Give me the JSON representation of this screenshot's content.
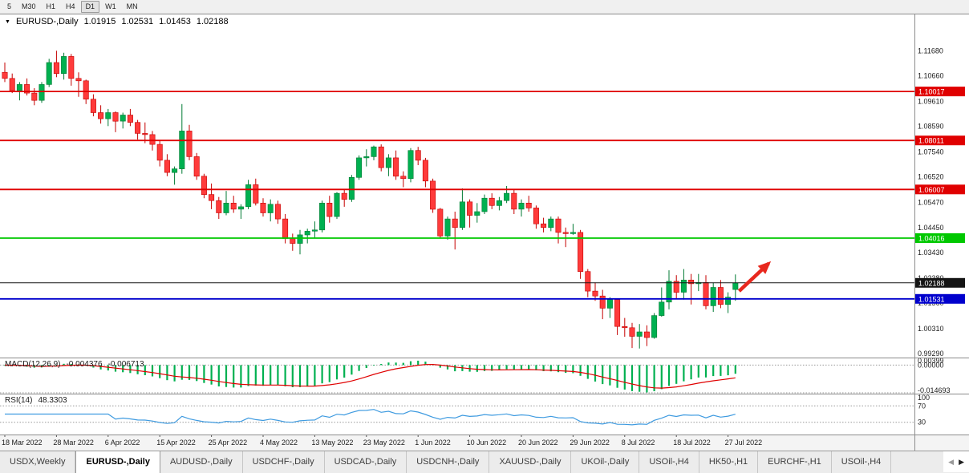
{
  "toolbar": {
    "timeframes": [
      "5",
      "M30",
      "H1",
      "H4",
      "D1",
      "W1",
      "MN"
    ],
    "active": "D1"
  },
  "icons": {
    "dropdown": "▼",
    "scroll_left": "◀",
    "scroll_right": "▶"
  },
  "header": {
    "symbol": "EURUSD-,Daily",
    "open": "1.01915",
    "high": "1.02531",
    "low": "1.01453",
    "close": "1.02188"
  },
  "chart_data": {
    "type": "candlestick",
    "title": "EURUSD-,Daily",
    "y_axis_labels": [
      "1.11680",
      "1.10660",
      "1.09610",
      "1.08590",
      "1.07540",
      "1.06520",
      "1.05470",
      "1.04450",
      "1.03430",
      "1.02380",
      "1.01360",
      "1.00310",
      "0.99290"
    ],
    "x_axis_labels": [
      "18 Mar 2022",
      "28 Mar 2022",
      "6 Apr 2022",
      "15 Apr 2022",
      "25 Apr 2022",
      "4 May 2022",
      "13 May 2022",
      "23 May 2022",
      "1 Jun 2022",
      "10 Jun 2022",
      "20 Jun 2022",
      "29 Jun 2022",
      "8 Jul 2022",
      "18 Jul 2022",
      "27 Jul 2022"
    ],
    "price_range": {
      "top": 1.132,
      "bottom": 0.9913
    },
    "up_color": "#00b050",
    "down_color": "#ff3b3b",
    "up_stroke": "#007a33",
    "down_stroke": "#c40000",
    "horizontal_lines": [
      {
        "price": 1.10017,
        "label": "1.10017",
        "color": "#e00000",
        "width": 1.8
      },
      {
        "price": 1.08011,
        "label": "1.08011",
        "color": "#e00000",
        "width": 1.8
      },
      {
        "price": 1.06007,
        "label": "1.06007",
        "color": "#e00000",
        "width": 1.8
      },
      {
        "price": 1.04016,
        "label": "1.04016",
        "color": "#00c800",
        "width": 1.8
      },
      {
        "price": 1.02188,
        "label": "1.02188",
        "color": "#141414",
        "width": 1
      },
      {
        "price": 1.01531,
        "label": "1.01531",
        "color": "#0000cd",
        "width": 1.8
      }
    ],
    "arrow": {
      "color": "#e8281e",
      "from": {
        "candle": 99.5,
        "price": 1.0185
      },
      "to": {
        "candle": 103.5,
        "price": 1.0298
      }
    },
    "candles": [
      [
        1.108,
        1.112,
        1.104,
        1.1055
      ],
      [
        1.1055,
        1.1075,
        1.0995,
        1.1005
      ],
      [
        1.1005,
        1.104,
        1.0965,
        1.103
      ],
      [
        1.103,
        1.1055,
        1.0985,
        1.0995
      ],
      [
        1.0995,
        1.1015,
        1.0945,
        1.0965
      ],
      [
        1.0965,
        1.104,
        1.0955,
        1.103
      ],
      [
        1.103,
        1.1135,
        1.102,
        1.112
      ],
      [
        1.112,
        1.1168,
        1.106,
        1.1075
      ],
      [
        1.1075,
        1.116,
        1.105,
        1.1145
      ],
      [
        1.1145,
        1.1155,
        1.1025,
        1.1055
      ],
      [
        1.1055,
        1.108,
        1.098,
        1.1045
      ],
      [
        1.1045,
        1.105,
        1.095,
        1.097
      ],
      [
        1.097,
        1.099,
        1.09,
        1.0915
      ],
      [
        1.0915,
        1.0945,
        1.087,
        1.089
      ],
      [
        1.089,
        1.093,
        1.086,
        1.0915
      ],
      [
        1.0915,
        1.092,
        1.0835,
        1.088
      ],
      [
        1.088,
        1.0915,
        1.085,
        1.0905
      ],
      [
        1.0905,
        1.093,
        1.086,
        1.0875
      ],
      [
        1.0875,
        1.0885,
        1.0805,
        1.083
      ],
      [
        1.083,
        1.0875,
        1.079,
        1.0825
      ],
      [
        1.0825,
        1.084,
        1.076,
        1.0785
      ],
      [
        1.0785,
        1.08,
        1.0695,
        1.072
      ],
      [
        1.072,
        1.0745,
        1.0655,
        1.067
      ],
      [
        1.067,
        1.0695,
        1.062,
        1.0685
      ],
      [
        1.0685,
        1.095,
        1.0665,
        1.084
      ],
      [
        1.084,
        1.0865,
        1.072,
        1.0735
      ],
      [
        1.0735,
        1.075,
        1.064,
        1.0655
      ],
      [
        1.0655,
        1.0665,
        1.0565,
        1.058
      ],
      [
        1.058,
        1.0625,
        1.052,
        1.0555
      ],
      [
        1.0555,
        1.057,
        1.048,
        1.0505
      ],
      [
        1.0505,
        1.0595,
        1.0495,
        1.0545
      ],
      [
        1.0545,
        1.0575,
        1.0505,
        1.052
      ],
      [
        1.052,
        1.054,
        1.048,
        1.053
      ],
      [
        1.053,
        1.064,
        1.052,
        1.062
      ],
      [
        1.062,
        1.0645,
        1.0535,
        1.0545
      ],
      [
        1.0545,
        1.0565,
        1.049,
        1.0505
      ],
      [
        1.0505,
        1.056,
        1.047,
        1.054
      ],
      [
        1.054,
        1.0555,
        1.046,
        1.048
      ],
      [
        1.048,
        1.05,
        1.038,
        1.04
      ],
      [
        1.04,
        1.042,
        1.035,
        1.038
      ],
      [
        1.038,
        1.0435,
        1.0335,
        1.0415
      ],
      [
        1.0415,
        1.044,
        1.038,
        1.043
      ],
      [
        1.043,
        1.047,
        1.04,
        1.0435
      ],
      [
        1.0435,
        1.0555,
        1.0425,
        1.0545
      ],
      [
        1.0545,
        1.0575,
        1.0465,
        1.049
      ],
      [
        1.049,
        1.059,
        1.048,
        1.0585
      ],
      [
        1.0585,
        1.06,
        1.053,
        1.056
      ],
      [
        1.056,
        1.066,
        1.055,
        1.065
      ],
      [
        1.065,
        1.074,
        1.064,
        1.073
      ],
      [
        1.073,
        1.0765,
        1.0695,
        1.0735
      ],
      [
        1.0735,
        1.078,
        1.072,
        1.0775
      ],
      [
        1.0775,
        1.0785,
        1.0675,
        1.069
      ],
      [
        1.069,
        1.0745,
        1.0655,
        1.073
      ],
      [
        1.073,
        1.076,
        1.064,
        1.0655
      ],
      [
        1.0655,
        1.0675,
        1.061,
        1.0645
      ],
      [
        1.0645,
        1.077,
        1.063,
        1.076
      ],
      [
        1.076,
        1.0775,
        1.07,
        1.072
      ],
      [
        1.072,
        1.073,
        1.061,
        1.0635
      ],
      [
        1.0635,
        1.0645,
        1.0505,
        1.052
      ],
      [
        1.052,
        1.0525,
        1.04,
        1.041
      ],
      [
        1.041,
        1.049,
        1.0395,
        1.048
      ],
      [
        1.048,
        1.051,
        1.0355,
        1.0445
      ],
      [
        1.0445,
        1.0605,
        1.0435,
        1.055
      ],
      [
        1.055,
        1.056,
        1.0445,
        1.0495
      ],
      [
        1.0495,
        1.0545,
        1.0465,
        1.051
      ],
      [
        1.051,
        1.058,
        1.05,
        1.0565
      ],
      [
        1.0565,
        1.0585,
        1.052,
        1.0535
      ],
      [
        1.0535,
        1.057,
        1.0515,
        1.0555
      ],
      [
        1.0555,
        1.0615,
        1.0545,
        1.0585
      ],
      [
        1.0585,
        1.06,
        1.05,
        1.052
      ],
      [
        1.052,
        1.056,
        1.049,
        1.0545
      ],
      [
        1.0545,
        1.0575,
        1.051,
        1.0525
      ],
      [
        1.0525,
        1.0535,
        1.044,
        1.046
      ],
      [
        1.046,
        1.0485,
        1.0425,
        1.0445
      ],
      [
        1.0445,
        1.049,
        1.043,
        1.048
      ],
      [
        1.048,
        1.049,
        1.038,
        1.0425
      ],
      [
        1.0425,
        1.0445,
        1.0365,
        1.042
      ],
      [
        1.042,
        1.046,
        1.0415,
        1.0425
      ],
      [
        1.0425,
        1.0435,
        1.0235,
        1.0265
      ],
      [
        1.0265,
        1.0275,
        1.016,
        1.0185
      ],
      [
        1.0185,
        1.022,
        1.0145,
        1.0165
      ],
      [
        1.0165,
        1.019,
        1.007,
        1.0115
      ],
      [
        1.0115,
        1.016,
        1.0075,
        1.015
      ],
      [
        1.015,
        1.0155,
        1.0005,
        1.004
      ],
      [
        1.004,
        1.0075,
        0.9998,
        1.0035
      ],
      [
        1.0035,
        1.0055,
        0.9952,
        1.0
      ],
      [
        1.0,
        1.005,
        0.995,
        1.0018
      ],
      [
        1.0018,
        1.0045,
        0.996,
        0.9995
      ],
      [
        0.9995,
        1.0095,
        0.999,
        1.0085
      ],
      [
        1.0085,
        1.02,
        1.008,
        1.014
      ],
      [
        1.014,
        1.027,
        1.011,
        1.0225
      ],
      [
        1.0225,
        1.025,
        1.0155,
        1.018
      ],
      [
        1.018,
        1.0275,
        1.015,
        1.023
      ],
      [
        1.023,
        1.0255,
        1.013,
        1.0215
      ],
      [
        1.0215,
        1.0255,
        1.0185,
        1.022
      ],
      [
        1.022,
        1.025,
        1.011,
        1.0125
      ],
      [
        1.0125,
        1.022,
        1.01,
        1.02
      ],
      [
        1.02,
        1.023,
        1.0115,
        1.013
      ],
      [
        1.013,
        1.018,
        1.0095,
        1.016
      ],
      [
        1.01915,
        1.02531,
        1.01453,
        1.02188
      ]
    ]
  },
  "macd": {
    "label": "MACD(12,26,9)",
    "value1": "-0.004376",
    "value2": "-0.006713",
    "axis_labels": [
      "0.00399",
      "0.00000",
      "-0.014693"
    ],
    "range": {
      "max": 0.00399,
      "min": -0.014693
    },
    "histogram_color": "#00b050",
    "signal_color": "#e00000"
  },
  "rsi": {
    "label": "RSI(14)",
    "value": "48.3303",
    "period": 14,
    "axis_labels": [
      "100",
      "70",
      "30"
    ],
    "dashed_levels": [
      70,
      30
    ],
    "line_color": "#3f9be0"
  },
  "tabs": {
    "items": [
      "USDX,Weekly",
      "EURUSD-,Daily",
      "AUDUSD-,Daily",
      "USDCHF-,Daily",
      "USDCAD-,Daily",
      "USDCNH-,Daily",
      "XAUUSD-,Daily",
      "UKOil-,Daily",
      "USOil-,H4",
      "HK50-,H1",
      "EURCHF-,H1",
      "USOil-,H4"
    ],
    "active_index": 1
  }
}
